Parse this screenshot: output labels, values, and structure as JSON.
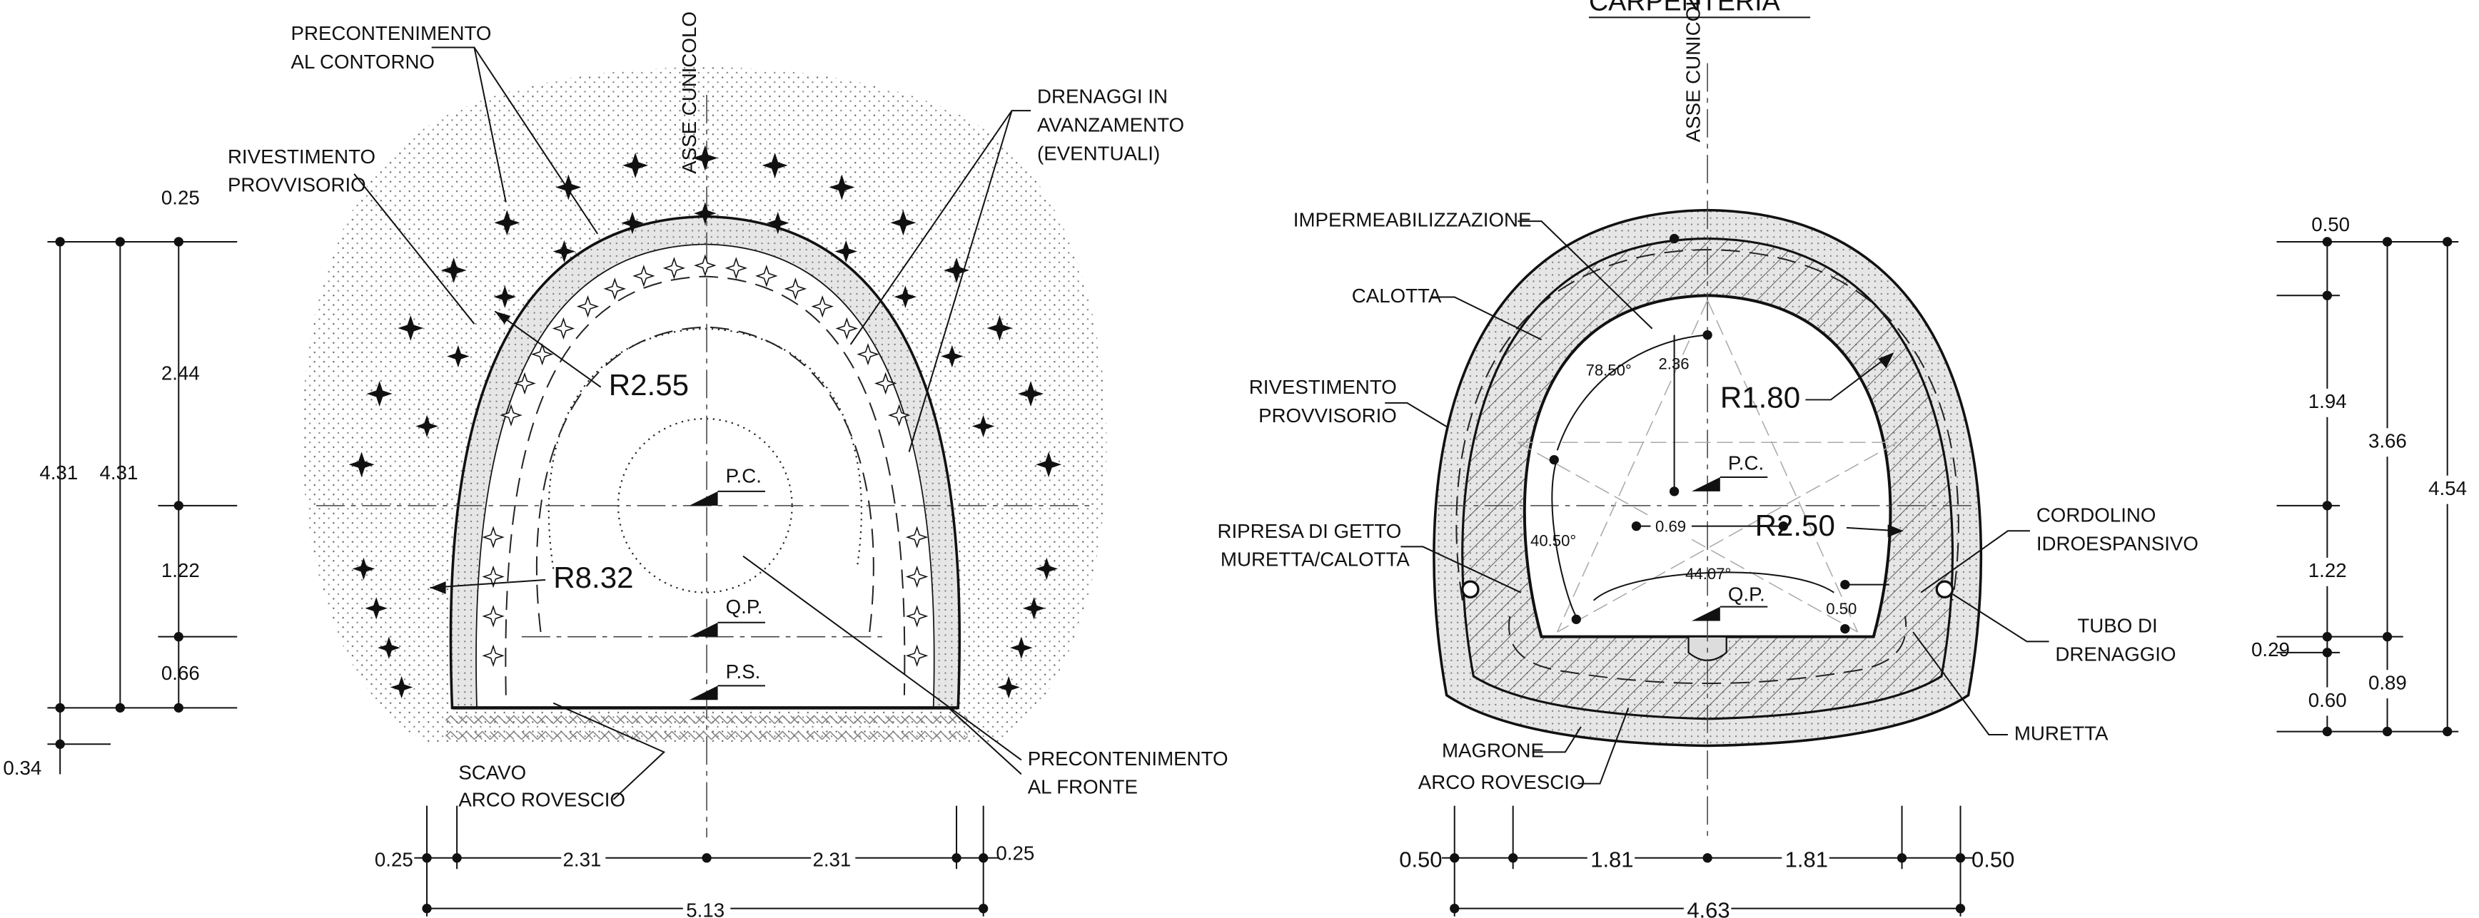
{
  "title": "CARPENTERIA",
  "left": {
    "axis": "ASSE CUNICOLO",
    "precontenimento_contorno": [
      "PRECONTENIMENTO",
      "AL CONTORNO"
    ],
    "drenaggi": [
      "DRENAGGI IN",
      "AVANZAMENTO",
      "(EVENTUALI)"
    ],
    "rivestimento": [
      "RIVESTIMENTO",
      "PROVVISORIO"
    ],
    "radius_inner": "R2.55",
    "radius_outer": "R8.32",
    "levels": [
      "P.C.",
      "Q.P.",
      "P.S."
    ],
    "scavo": [
      "SCAVO",
      "ARCO ROVESCIO"
    ],
    "precontenimento_fronte": [
      "PRECONTENIMENTO",
      "AL FRONTE"
    ],
    "vertical_dims": [
      "0.25",
      "2.44",
      "1.22",
      "0.66",
      "4.31",
      "4.31",
      "0.34"
    ],
    "bottom_dims": [
      "0.25",
      "2.31",
      "2.31",
      "0.25",
      "5.13"
    ]
  },
  "right": {
    "axis": "ASSE CUNICOLO",
    "impermeabilizzazione": "IMPERMEABILIZZAZIONE",
    "calotta": "CALOTTA",
    "rivestimento": [
      "RIVESTIMENTO",
      "PROVVISORIO"
    ],
    "ripresa": [
      "RIPRESA DI GETTO",
      "MURETTA/CALOTTA"
    ],
    "magrone": "MAGRONE",
    "arco": "ARCO ROVESCIO",
    "cordolino": [
      "CORDOLINO",
      "IDROESPANSIVO"
    ],
    "tubo": [
      "TUBO DI",
      "DRENAGGIO"
    ],
    "muretta": "MURETTA",
    "radius_inner": "R1.80",
    "radius_outer": "R2.50",
    "inner_dims": [
      "78.50°",
      "2.36",
      "40.50°",
      "44.07°",
      "0.69",
      "0.50"
    ],
    "levels": [
      "P.C.",
      "Q.P."
    ],
    "vertical_dims": [
      "0.50",
      "1.94",
      "3.66",
      "4.54",
      "1.22",
      "0.29",
      "0.89",
      "0.60"
    ],
    "bottom_dims": [
      "0.50",
      "1.81",
      "1.81",
      "0.50",
      "4.63"
    ]
  }
}
